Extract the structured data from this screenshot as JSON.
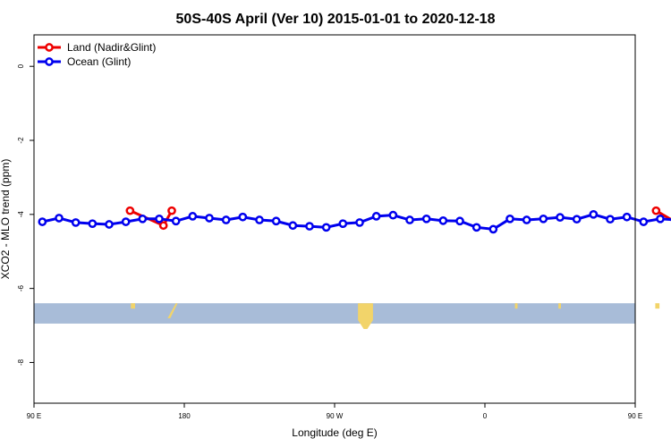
{
  "chart_data": {
    "type": "line",
    "title": "50S-40S April (Ver 10)   2015-01-01 to 2020-12-18",
    "xlabel": "Longitude (deg E)",
    "ylabel": "XCO2 - MLO trend (ppm)",
    "xlim": [
      90,
      450
    ],
    "ylim": [
      -9.1,
      0.85
    ],
    "x_ticks": [
      {
        "value": 90,
        "label": "90 E"
      },
      {
        "value": 180,
        "label": "180"
      },
      {
        "value": 270,
        "label": "90 W"
      },
      {
        "value": 360,
        "label": "0"
      },
      {
        "value": 450,
        "label": "90 E"
      },
      {
        "value": 540,
        "label": "180"
      }
    ],
    "y_ticks": [
      {
        "value": 0,
        "label": "0"
      },
      {
        "value": -2,
        "label": "-2"
      },
      {
        "value": -4,
        "label": "-4"
      },
      {
        "value": -6,
        "label": "-6"
      },
      {
        "value": -8,
        "label": "-8"
      }
    ],
    "legend_position": "top-left",
    "series": [
      {
        "name": "Land (Nadir&Glint)",
        "color": "#ee0000",
        "x": [
          147.5,
          167.5,
          172.5,
          462.5,
          477.5,
          482.5
        ],
        "y": [
          -3.9,
          -4.3,
          -3.9,
          -3.9,
          -4.3,
          -3.9
        ]
      },
      {
        "name": "Ocean (Glint)",
        "color": "#0000ee",
        "x": [
          95,
          105,
          115,
          125,
          135,
          145,
          155,
          165,
          175,
          185,
          195,
          205,
          215,
          225,
          235,
          245,
          255,
          265,
          275,
          285,
          295,
          305,
          315,
          325,
          335,
          345,
          355,
          365,
          375,
          385,
          395,
          405,
          415,
          425,
          435,
          445,
          455,
          465,
          475,
          485
        ],
        "y": [
          -4.2,
          -4.1,
          -4.22,
          -4.25,
          -4.27,
          -4.2,
          -4.12,
          -4.12,
          -4.18,
          -4.05,
          -4.1,
          -4.15,
          -4.07,
          -4.15,
          -4.18,
          -4.3,
          -4.32,
          -4.35,
          -4.25,
          -4.22,
          -4.05,
          -4.02,
          -4.15,
          -4.12,
          -4.17,
          -4.18,
          -4.35,
          -4.4,
          -4.12,
          -4.15,
          -4.12,
          -4.08,
          -4.13,
          -4.0,
          -4.13,
          -4.07,
          -4.2,
          -4.12,
          -4.15,
          -4.2
        ]
      }
    ],
    "surface_strip": {
      "y_range": [
        -6.4,
        -6.95
      ],
      "ocean_color": "#a8bcd8",
      "land_color": "#f2d46a",
      "land_segments": [
        {
          "x_start": 148,
          "x_end": 150,
          "shape": "speck"
        },
        {
          "x_start": 170,
          "x_end": 176,
          "shape": "diagonal"
        },
        {
          "x_start": 284,
          "x_end": 293,
          "shape": "column"
        },
        {
          "x_start": 378,
          "x_end": 379,
          "shape": "speck"
        },
        {
          "x_start": 404,
          "x_end": 405,
          "shape": "speck"
        },
        {
          "x_start": 462,
          "x_end": 464,
          "shape": "speck"
        },
        {
          "x_start": 477,
          "x_end": 484,
          "shape": "diagonal"
        }
      ]
    }
  }
}
